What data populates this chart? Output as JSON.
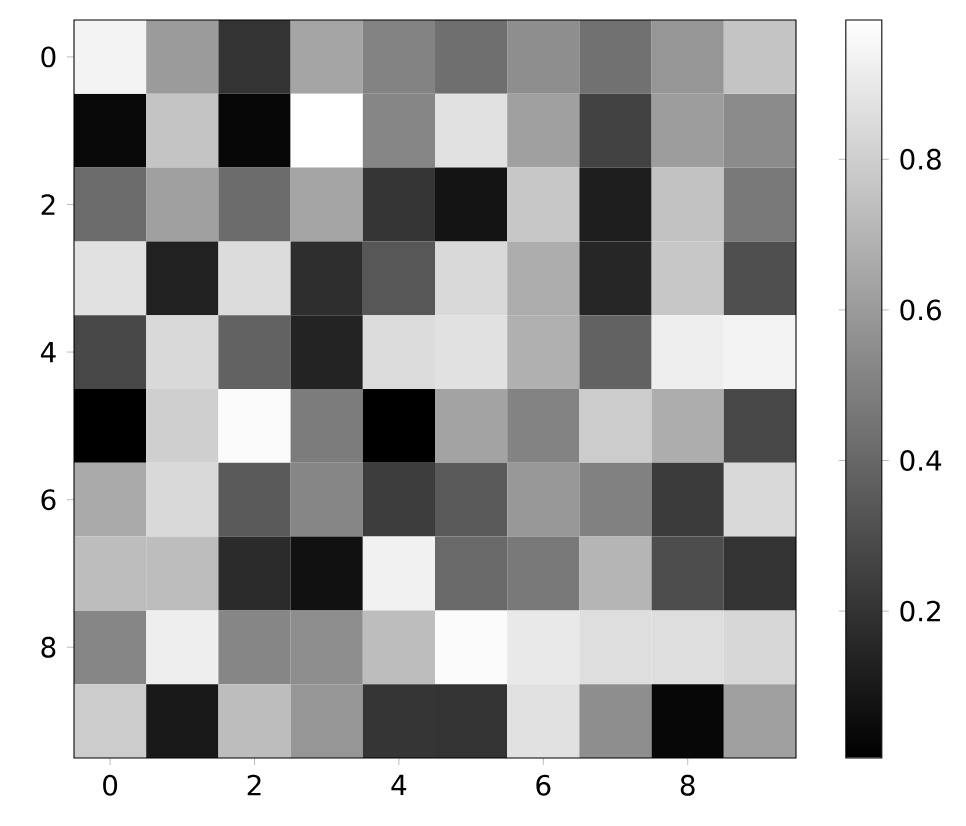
{
  "chart_data": {
    "type": "heatmap",
    "categories": [
      "0",
      null,
      "2",
      null,
      "4",
      null,
      "6",
      null,
      "8",
      null
    ],
    "y_categories": [
      "0",
      null,
      "2",
      null,
      "4",
      null,
      "6",
      null,
      "8",
      null
    ],
    "cells": [
      [
        0.94,
        0.6,
        0.2,
        0.64,
        0.51,
        0.43,
        0.55,
        0.44,
        0.58,
        0.76
      ],
      [
        0.04,
        0.76,
        0.03,
        0.985,
        0.52,
        0.87,
        0.62,
        0.26,
        0.61,
        0.54
      ],
      [
        0.42,
        0.62,
        0.42,
        0.64,
        0.21,
        0.08,
        0.77,
        0.12,
        0.75,
        0.47
      ],
      [
        0.87,
        0.13,
        0.85,
        0.18,
        0.34,
        0.84,
        0.67,
        0.15,
        0.77,
        0.31
      ],
      [
        0.28,
        0.84,
        0.38,
        0.14,
        0.85,
        0.87,
        0.68,
        0.38,
        0.92,
        0.94
      ],
      [
        0.005,
        0.8,
        0.97,
        0.48,
        0.005,
        0.63,
        0.51,
        0.79,
        0.67,
        0.28
      ],
      [
        0.66,
        0.84,
        0.35,
        0.52,
        0.24,
        0.35,
        0.59,
        0.5,
        0.23,
        0.84
      ],
      [
        0.73,
        0.73,
        0.17,
        0.07,
        0.93,
        0.41,
        0.47,
        0.7,
        0.3,
        0.2
      ],
      [
        0.52,
        0.92,
        0.52,
        0.55,
        0.73,
        0.97,
        0.9,
        0.86,
        0.86,
        0.83
      ],
      [
        0.79,
        0.1,
        0.73,
        0.58,
        0.21,
        0.2,
        0.87,
        0.55,
        0.03,
        0.62
      ]
    ],
    "clim": [
      0.005,
      0.985
    ],
    "cticks": [
      0.2,
      0.4,
      0.6,
      0.8
    ]
  }
}
